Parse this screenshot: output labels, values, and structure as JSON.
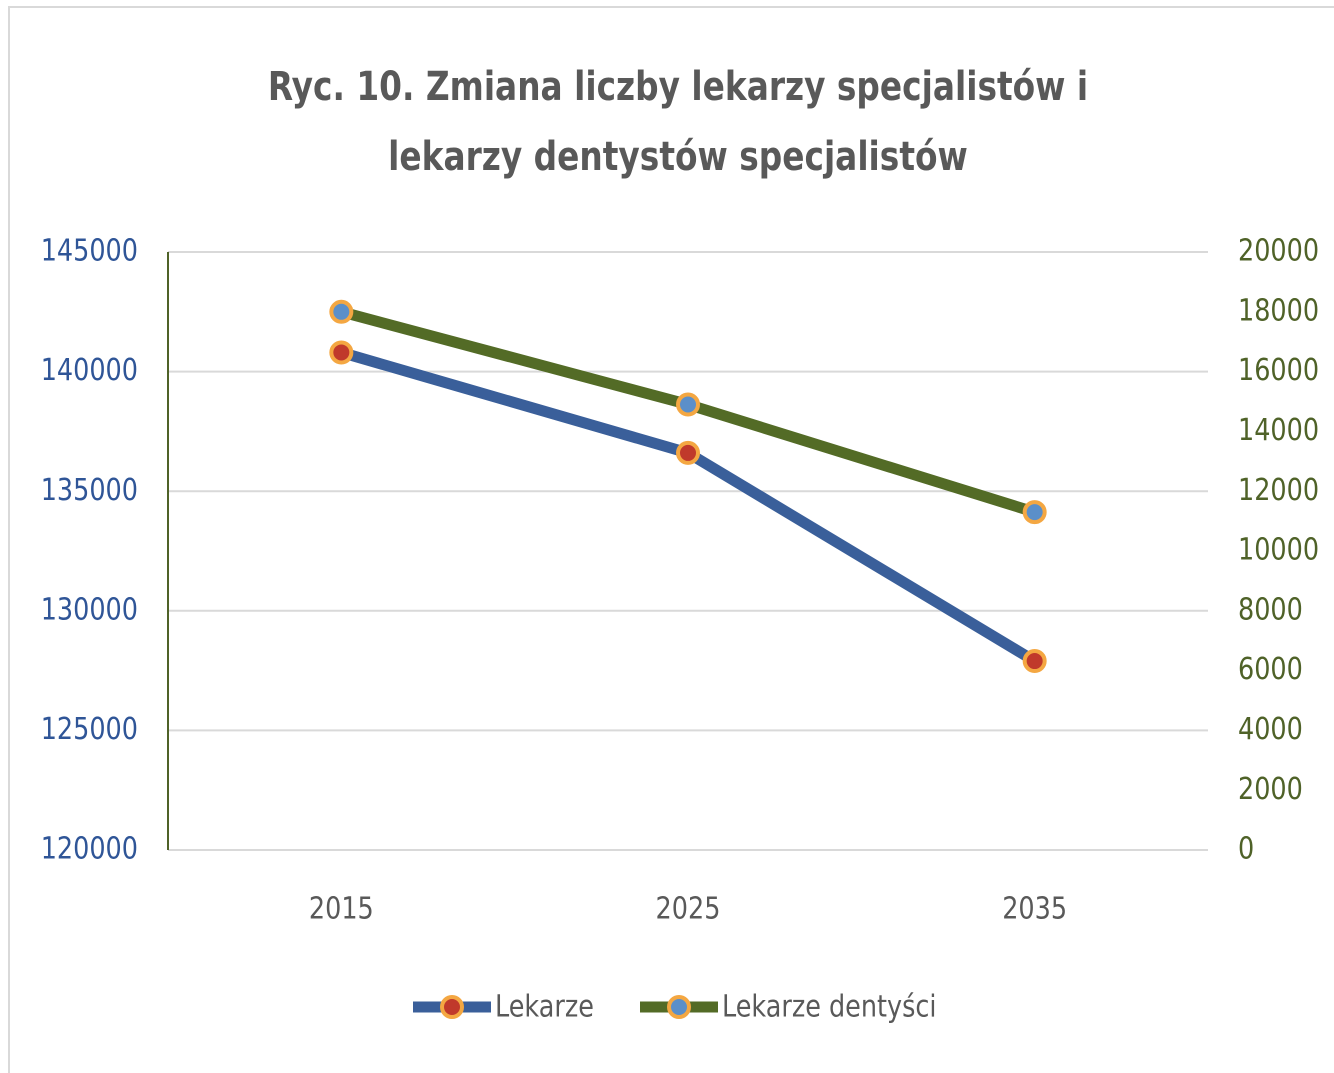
{
  "chart_data": {
    "type": "line",
    "title": "Ryc. 10. Zmiana liczby lekarzy specjalistów i lekarzy dentystów specjalistów",
    "categories": [
      "2015",
      "2025",
      "2035"
    ],
    "series": [
      {
        "name": "Lekarze",
        "color": "#3a5f9a",
        "marker_color": "#c0392b",
        "values": [
          140800,
          136600,
          127900
        ]
      },
      {
        "name": "Lekarze dentyści",
        "color": "#536b26",
        "marker_color": "#5b8fc9",
        "axis": "y2",
        "values": [
          18000,
          14900,
          11300
        ]
      }
    ],
    "ylim": [
      120000,
      145000
    ],
    "yticks": [
      120000,
      125000,
      130000,
      135000,
      140000,
      145000
    ],
    "y2lim": [
      0,
      20000
    ],
    "y2ticks": [
      0,
      2000,
      4000,
      6000,
      8000,
      10000,
      12000,
      14000,
      16000,
      18000,
      20000
    ],
    "grid": true,
    "legend": "bottom"
  }
}
